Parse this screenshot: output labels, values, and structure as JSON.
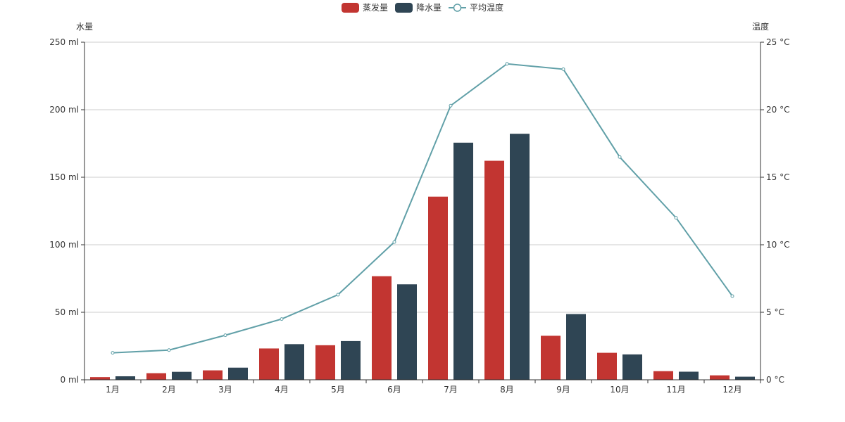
{
  "chart_data": {
    "type": "bar",
    "categories": [
      "1月",
      "2月",
      "3月",
      "4月",
      "5月",
      "6月",
      "7月",
      "8月",
      "9月",
      "10月",
      "11月",
      "12月"
    ],
    "series": [
      {
        "name": "蒸发量",
        "type": "bar",
        "axis": "left",
        "color": "#c23531",
        "values": [
          2.0,
          4.9,
          7.0,
          23.2,
          25.6,
          76.7,
          135.6,
          162.2,
          32.6,
          20.0,
          6.4,
          3.3
        ]
      },
      {
        "name": "降水量",
        "type": "bar",
        "axis": "left",
        "color": "#2f4554",
        "values": [
          2.6,
          5.9,
          9.0,
          26.4,
          28.7,
          70.7,
          175.6,
          182.2,
          48.7,
          18.8,
          6.0,
          2.3
        ]
      },
      {
        "name": "平均温度",
        "type": "line",
        "axis": "right",
        "color": "#61a0a8",
        "values": [
          2.0,
          2.2,
          3.3,
          4.5,
          6.3,
          10.2,
          20.3,
          23.4,
          23.0,
          16.5,
          12.0,
          6.2
        ]
      }
    ],
    "y_left": {
      "name": "水量",
      "min": 0,
      "max": 250,
      "interval": 50,
      "unit": " ml",
      "ticks": [
        "0 ml",
        "50 ml",
        "100 ml",
        "150 ml",
        "200 ml",
        "250 ml"
      ]
    },
    "y_right": {
      "name": "温度",
      "min": 0,
      "max": 25,
      "interval": 5,
      "unit": " °C",
      "ticks": [
        "0 °C",
        "5 °C",
        "10 °C",
        "15 °C",
        "20 °C",
        "25 °C"
      ]
    },
    "grid": true,
    "legend_position": "top-center"
  }
}
